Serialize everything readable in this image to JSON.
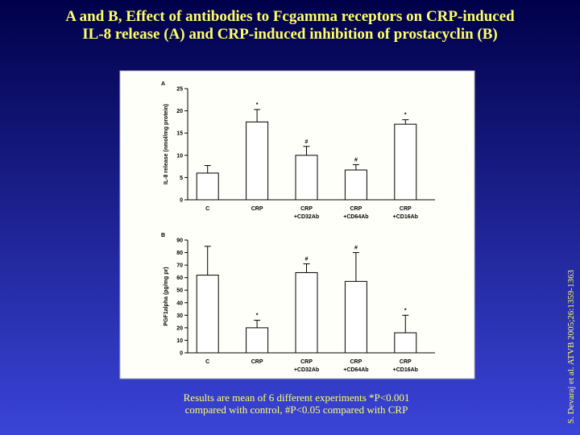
{
  "title": "A and B, Effect of antibodies to Fcgamma receptors on CRP-induced\nIL-8 release (A) and CRP-induced inhibition of prostacyclin (B)",
  "footnote": "Results are mean of 6 different experiments *P<0.001\ncompared with control, #P<0.05 compared with CRP",
  "citation": "S. Devaraj et al. ATVB 2005;26:1359-1363",
  "chart_data": [
    {
      "type": "bar",
      "panel_label": "A",
      "ylabel": "IL-8 release (nmol/mg protein)",
      "categories": [
        "C",
        "CRP",
        "CRP\n+CD32Ab",
        "CRP\n+CD64Ab",
        "CRP\n+CD16Ab"
      ],
      "values": [
        6,
        17.5,
        10,
        6.7,
        17
      ],
      "errors": [
        1.7,
        2.8,
        2,
        1.2,
        1
      ],
      "annotations": [
        null,
        "*",
        "#",
        "#",
        "*"
      ],
      "ylim": [
        0,
        25
      ],
      "yticks": [
        0,
        5,
        10,
        15,
        20,
        25
      ],
      "color": "#ffffff"
    },
    {
      "type": "bar",
      "panel_label": "B",
      "ylabel": "PGF1alpha (pg/mg pr)",
      "categories": [
        "C",
        "CRP",
        "CRP\n+CD32Ab",
        "CRP\n+CD64Ab",
        "CRP\n+CD16Ab"
      ],
      "values": [
        62,
        20,
        64,
        57,
        16
      ],
      "errors": [
        23,
        6,
        7,
        23,
        14
      ],
      "annotations": [
        null,
        "*",
        "#",
        "#",
        "*"
      ],
      "ylim": [
        0,
        90
      ],
      "yticks": [
        0,
        10,
        20,
        30,
        40,
        50,
        60,
        70,
        80,
        90
      ],
      "color": "#ffffff"
    }
  ]
}
